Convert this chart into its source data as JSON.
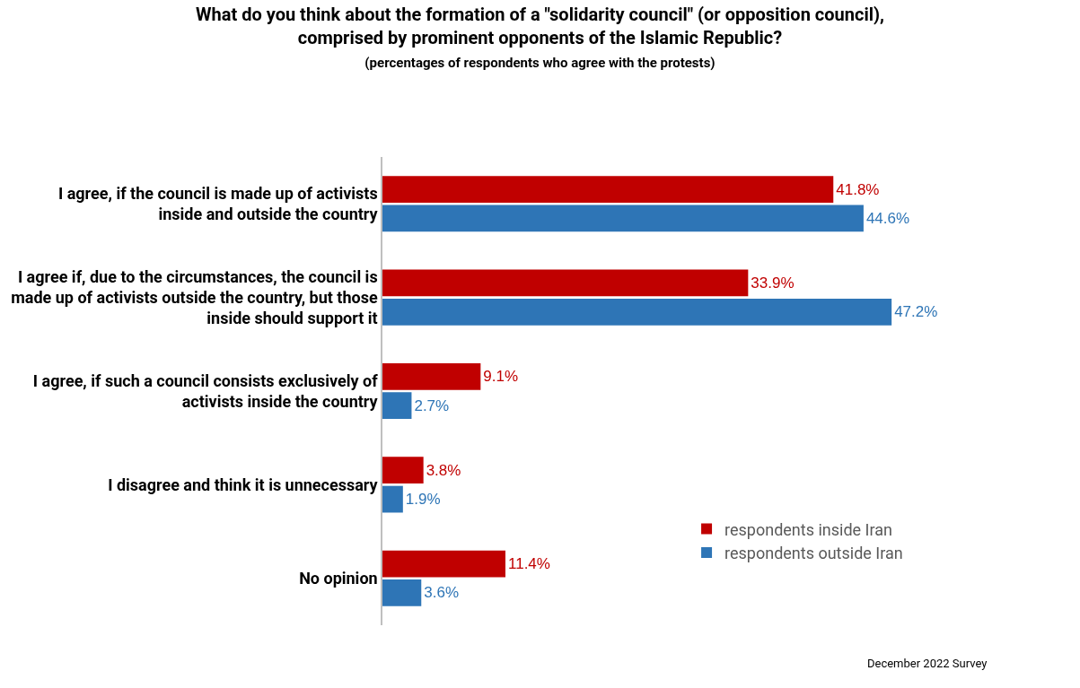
{
  "chart_data": {
    "type": "bar",
    "orientation": "horizontal",
    "title": "What do you think about the formation of a \"solidarity council\" (or opposition council), comprised by prominent opponents of the Islamic Republic?",
    "subtitle": "(percentages of respondents who agree with the protests)",
    "categories": [
      "I agree, if the council is made up of activists inside and outside the country",
      "I agree if, due to the circumstances, the council is made up of activists outside the country, but those inside should support it",
      "I agree, if such a council consists exclusively of activists inside the country",
      "I disagree and think it is unnecessary",
      "No opinion"
    ],
    "series": [
      {
        "name": "respondents inside Iran",
        "color": "#c00000",
        "values": [
          41.8,
          33.9,
          9.1,
          3.8,
          11.4
        ],
        "value_labels": [
          "41.8%",
          "33.9%",
          "9.1%",
          "3.8%",
          "11.4%"
        ]
      },
      {
        "name": "respondents outside Iran",
        "color": "#2e75b6",
        "values": [
          44.6,
          47.2,
          2.7,
          1.9,
          3.6
        ],
        "value_labels": [
          "44.6%",
          "47.2%",
          "2.7%",
          "1.9%",
          "3.6%"
        ]
      }
    ],
    "legend": "bottom right",
    "grid": false,
    "annotations": [
      "December 2022 Survey"
    ]
  }
}
